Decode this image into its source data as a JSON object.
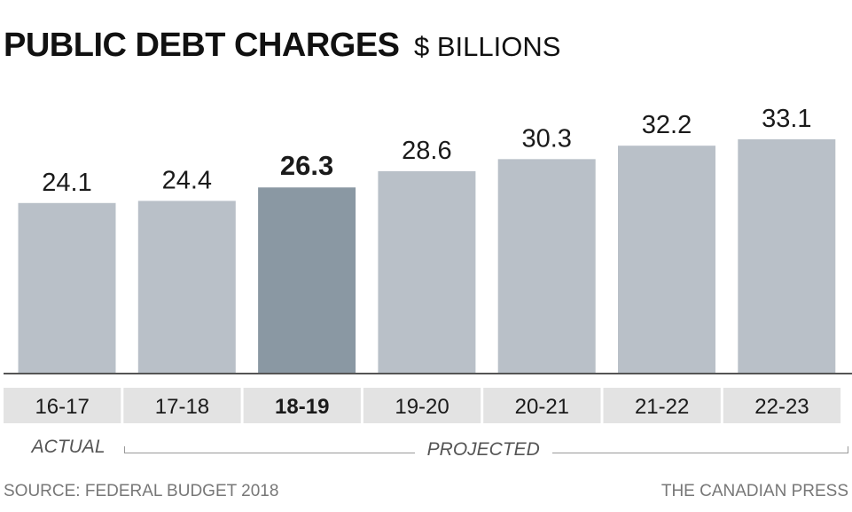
{
  "header": {
    "title": "PUBLIC DEBT CHARGES",
    "subtitle": "$ BILLIONS"
  },
  "chart_data": {
    "type": "bar",
    "title": "PUBLIC DEBT CHARGES",
    "subtitle": "$ BILLIONS",
    "categories": [
      "16-17",
      "17-18",
      "18-19",
      "19-20",
      "20-21",
      "21-22",
      "22-23"
    ],
    "values": [
      24.1,
      24.4,
      26.3,
      28.6,
      30.3,
      32.2,
      33.1
    ],
    "value_labels": [
      "24.1",
      "24.4",
      "26.3",
      "28.6",
      "30.3",
      "32.2",
      "33.1"
    ],
    "highlight_index": 2,
    "colors": {
      "bar": "#b9c0c8",
      "bar_highlight": "#8a98a3",
      "baseline": "#555555",
      "tick_band": "#e3e3e3"
    },
    "legend": "none",
    "grid": false,
    "periods": [
      {
        "label": "ACTUAL",
        "categories": [
          "16-17"
        ]
      },
      {
        "label": "PROJECTED",
        "categories": [
          "17-18",
          "18-19",
          "19-20",
          "20-21",
          "21-22",
          "22-23"
        ]
      }
    ]
  },
  "footer": {
    "source": "SOURCE: FEDERAL BUDGET 2018",
    "credit": "THE CANADIAN PRESS"
  }
}
